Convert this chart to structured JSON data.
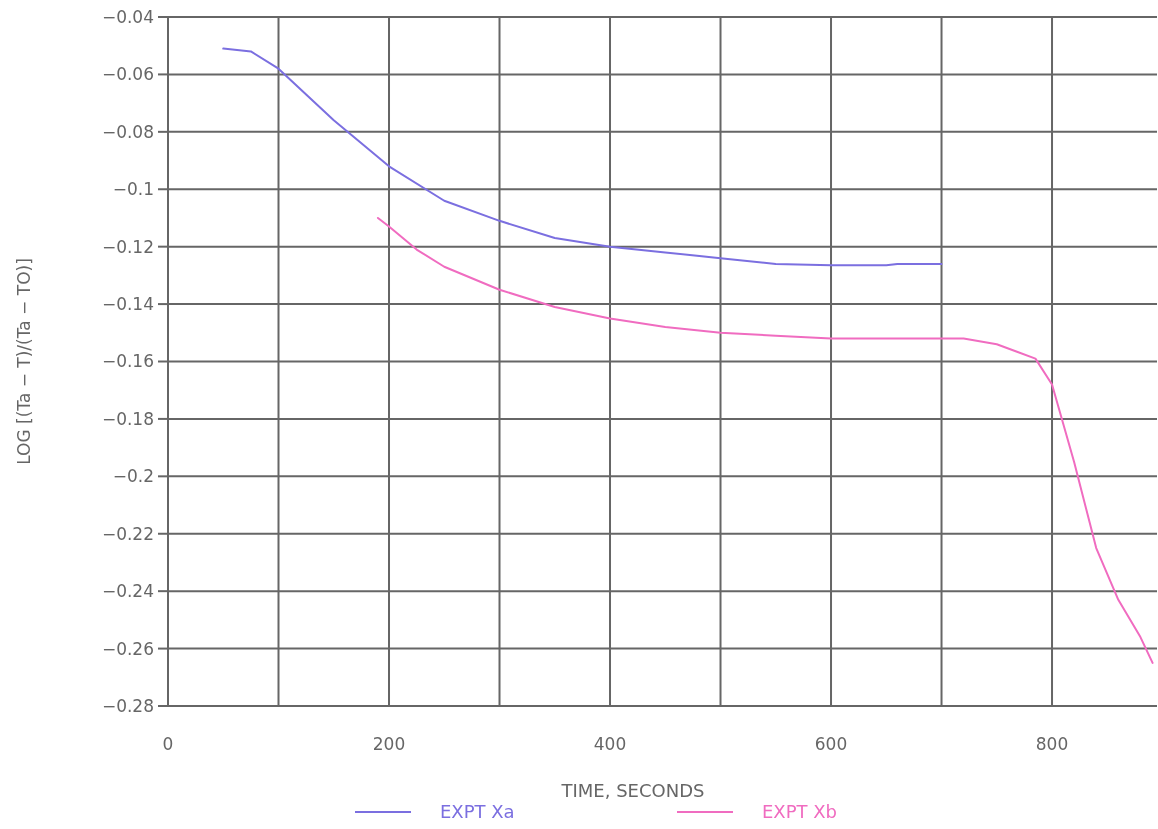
{
  "chart_data": {
    "type": "line",
    "xlabel": "TIME, SECONDS",
    "ylabel": "LOG [(Ta − T)/(Ta − TO)]",
    "xlim": [
      0,
      895
    ],
    "xticks": [
      0,
      {
        "value": 100,
        "label": null
      },
      200,
      {
        "value": 300,
        "label": null
      },
      400,
      {
        "value": 500,
        "label": null
      },
      600,
      {
        "value": 700,
        "label": null
      },
      800
    ],
    "ylim": [
      -0.28,
      -0.04
    ],
    "yticks": [
      {
        "value": -0.04,
        "label": "−0.04"
      },
      {
        "value": -0.06,
        "label": "−0.06"
      },
      {
        "value": -0.08,
        "label": "−0.08"
      },
      {
        "value": -0.1,
        "label": "−0.1"
      },
      {
        "value": -0.12,
        "label": "−0.12"
      },
      {
        "value": -0.14,
        "label": "−0.14"
      },
      {
        "value": -0.16,
        "label": "−0.16"
      },
      {
        "value": -0.18,
        "label": "−0.18"
      },
      {
        "value": -0.2,
        "label": "−0.2"
      },
      {
        "value": -0.22,
        "label": "−0.22"
      },
      {
        "value": -0.24,
        "label": "−0.24"
      },
      {
        "value": -0.26,
        "label": "−0.26"
      },
      {
        "value": -0.28,
        "label": "−0.28"
      }
    ],
    "grid": true,
    "legend": "bottom",
    "marker": "none",
    "line_style": "solid",
    "series": [
      {
        "name": "EXPT Xa",
        "color": "#7b6fe0",
        "x": [
          50,
          75,
          100,
          125,
          150,
          175,
          200,
          250,
          300,
          350,
          400,
          450,
          500,
          550,
          600,
          650,
          660,
          700
        ],
        "values": [
          -0.051,
          -0.052,
          -0.058,
          -0.067,
          -0.076,
          -0.084,
          -0.092,
          -0.104,
          -0.111,
          -0.117,
          -0.12,
          -0.122,
          -0.124,
          -0.126,
          -0.1265,
          -0.1265,
          -0.126,
          -0.126
        ]
      },
      {
        "name": "EXPT Xb",
        "color": "#f06cc0",
        "x": [
          190,
          200,
          225,
          250,
          300,
          350,
          400,
          450,
          500,
          550,
          600,
          700,
          720,
          750,
          785,
          800,
          820,
          840,
          860,
          880,
          891
        ],
        "values": [
          -0.11,
          -0.113,
          -0.121,
          -0.127,
          -0.135,
          -0.141,
          -0.145,
          -0.148,
          -0.15,
          -0.151,
          -0.152,
          -0.152,
          -0.152,
          -0.154,
          -0.159,
          -0.168,
          -0.195,
          -0.225,
          -0.243,
          -0.256,
          -0.265
        ]
      }
    ]
  }
}
